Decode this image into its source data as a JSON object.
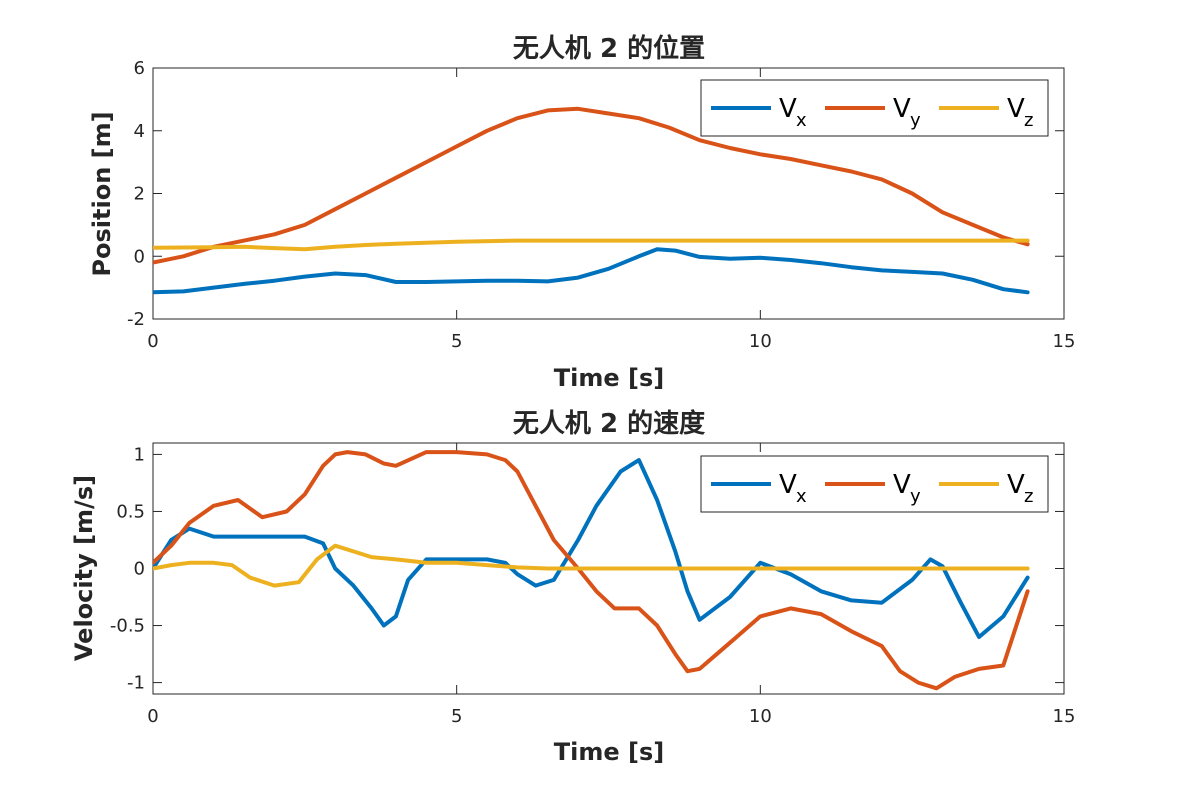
{
  "chart_data": [
    {
      "type": "line",
      "title": "无人机 2 的位置",
      "xlabel": "Time [s]",
      "ylabel": "Position [m]",
      "xlim": [
        0,
        15
      ],
      "ylim": [
        -2,
        6
      ],
      "xticks": [
        0,
        5,
        10,
        15
      ],
      "yticks": [
        -2,
        0,
        2,
        4,
        6
      ],
      "xtick_labels": [
        "0",
        "5",
        "10",
        "15"
      ],
      "ytick_labels": [
        "-2",
        "0",
        "2",
        "4",
        "6"
      ],
      "grid": false,
      "legend_position": "top-right",
      "series": [
        {
          "name": "V",
          "sub": "x",
          "color": "#0072BD",
          "x": [
            0,
            0.5,
            1,
            1.5,
            2,
            2.5,
            3,
            3.5,
            4,
            4.5,
            5,
            5.5,
            6,
            6.5,
            7,
            7.5,
            8,
            8.3,
            8.6,
            9,
            9.5,
            10,
            10.5,
            11,
            11.5,
            12,
            12.5,
            13,
            13.5,
            14,
            14.4
          ],
          "y": [
            -1.15,
            -1.12,
            -1.0,
            -0.88,
            -0.78,
            -0.65,
            -0.55,
            -0.6,
            -0.82,
            -0.82,
            -0.8,
            -0.78,
            -0.78,
            -0.8,
            -0.68,
            -0.4,
            0.0,
            0.22,
            0.18,
            -0.02,
            -0.08,
            -0.05,
            -0.12,
            -0.22,
            -0.35,
            -0.45,
            -0.5,
            -0.55,
            -0.75,
            -1.05,
            -1.15
          ]
        },
        {
          "name": "V",
          "sub": "y",
          "color": "#D95319",
          "x": [
            0,
            0.5,
            1,
            1.5,
            2,
            2.5,
            3,
            3.5,
            4,
            4.5,
            5,
            5.5,
            6,
            6.5,
            7,
            7.5,
            8,
            8.5,
            9,
            9.5,
            10,
            10.5,
            11,
            11.5,
            12,
            12.5,
            13,
            13.5,
            14,
            14.4
          ],
          "y": [
            -0.2,
            0.0,
            0.3,
            0.5,
            0.7,
            1.0,
            1.5,
            2.0,
            2.5,
            3.0,
            3.5,
            4.0,
            4.4,
            4.65,
            4.7,
            4.55,
            4.4,
            4.1,
            3.7,
            3.45,
            3.25,
            3.1,
            2.9,
            2.7,
            2.45,
            2.0,
            1.4,
            1.0,
            0.6,
            0.38
          ]
        },
        {
          "name": "V",
          "sub": "z",
          "color": "#EDB120",
          "x": [
            0,
            0.5,
            1,
            1.5,
            2,
            2.5,
            3,
            3.5,
            4,
            5,
            6,
            7,
            8,
            9,
            10,
            11,
            12,
            13,
            14,
            14.4
          ],
          "y": [
            0.27,
            0.28,
            0.29,
            0.3,
            0.26,
            0.22,
            0.3,
            0.36,
            0.4,
            0.46,
            0.5,
            0.5,
            0.5,
            0.5,
            0.5,
            0.5,
            0.5,
            0.5,
            0.5,
            0.5
          ]
        }
      ]
    },
    {
      "type": "line",
      "title": "无人机 2 的速度",
      "xlabel": "Time [s]",
      "ylabel": "Velocity [m/s]",
      "xlim": [
        0,
        15
      ],
      "ylim": [
        -1.1,
        1.1
      ],
      "xticks": [
        0,
        5,
        10,
        15
      ],
      "yticks": [
        -1,
        -0.5,
        0,
        0.5,
        1
      ],
      "xtick_labels": [
        "0",
        "5",
        "10",
        "15"
      ],
      "ytick_labels": [
        "-1",
        "-0.5",
        "0",
        "0.5",
        "1"
      ],
      "grid": false,
      "legend_position": "top-right",
      "series": [
        {
          "name": "V",
          "sub": "x",
          "color": "#0072BD",
          "x": [
            0,
            0.3,
            0.6,
            1.0,
            1.5,
            2.0,
            2.5,
            2.8,
            3.0,
            3.3,
            3.6,
            3.8,
            4.0,
            4.2,
            4.5,
            5.0,
            5.5,
            5.8,
            6.0,
            6.3,
            6.6,
            7.0,
            7.3,
            7.7,
            8.0,
            8.3,
            8.6,
            8.8,
            9.0,
            9.5,
            10.0,
            10.5,
            11.0,
            11.5,
            12.0,
            12.5,
            12.8,
            13.0,
            13.3,
            13.6,
            14.0,
            14.4
          ],
          "y": [
            0.0,
            0.25,
            0.35,
            0.28,
            0.28,
            0.28,
            0.28,
            0.22,
            0.0,
            -0.15,
            -0.35,
            -0.5,
            -0.42,
            -0.1,
            0.08,
            0.08,
            0.08,
            0.05,
            -0.05,
            -0.15,
            -0.1,
            0.25,
            0.55,
            0.85,
            0.95,
            0.6,
            0.15,
            -0.2,
            -0.45,
            -0.25,
            0.05,
            -0.05,
            -0.2,
            -0.28,
            -0.3,
            -0.1,
            0.08,
            0.02,
            -0.3,
            -0.6,
            -0.42,
            -0.08
          ]
        },
        {
          "name": "V",
          "sub": "y",
          "color": "#D95319",
          "x": [
            0,
            0.3,
            0.6,
            1.0,
            1.4,
            1.8,
            2.2,
            2.5,
            2.8,
            3.0,
            3.2,
            3.5,
            3.8,
            4.0,
            4.5,
            5.0,
            5.5,
            5.8,
            6.0,
            6.3,
            6.6,
            7.0,
            7.3,
            7.6,
            8.0,
            8.3,
            8.6,
            8.8,
            9.0,
            9.5,
            10.0,
            10.5,
            11.0,
            11.5,
            12.0,
            12.3,
            12.6,
            12.9,
            13.2,
            13.6,
            14.0,
            14.4
          ],
          "y": [
            0.05,
            0.2,
            0.4,
            0.55,
            0.6,
            0.45,
            0.5,
            0.65,
            0.9,
            1.0,
            1.02,
            1.0,
            0.92,
            0.9,
            1.02,
            1.02,
            1.0,
            0.95,
            0.85,
            0.55,
            0.25,
            0.0,
            -0.2,
            -0.35,
            -0.35,
            -0.5,
            -0.75,
            -0.9,
            -0.88,
            -0.65,
            -0.42,
            -0.35,
            -0.4,
            -0.55,
            -0.68,
            -0.9,
            -1.0,
            -1.05,
            -0.95,
            -0.88,
            -0.85,
            -0.2
          ]
        },
        {
          "name": "V",
          "sub": "z",
          "color": "#EDB120",
          "x": [
            0,
            0.3,
            0.6,
            1.0,
            1.3,
            1.6,
            2.0,
            2.4,
            2.7,
            3.0,
            3.3,
            3.6,
            4.0,
            4.5,
            5.0,
            5.5,
            6.0,
            6.5,
            7.0,
            8.0,
            9.0,
            10.0,
            11.0,
            12.0,
            13.0,
            14.0,
            14.4
          ],
          "y": [
            0.0,
            0.03,
            0.05,
            0.05,
            0.03,
            -0.08,
            -0.15,
            -0.12,
            0.08,
            0.2,
            0.15,
            0.1,
            0.08,
            0.05,
            0.05,
            0.03,
            0.01,
            0.0,
            0.0,
            0.0,
            0.0,
            0.0,
            0.0,
            0.0,
            0.0,
            0.0,
            0.0
          ]
        }
      ]
    }
  ]
}
